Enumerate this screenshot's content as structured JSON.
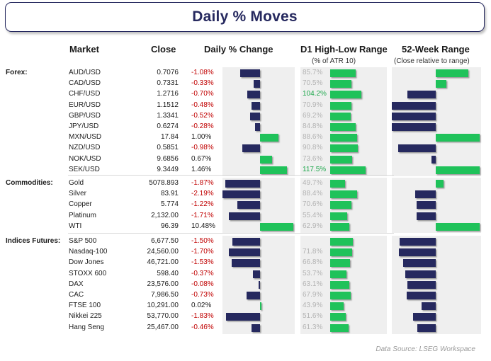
{
  "title": "Daily % Moves",
  "headers": {
    "market": "Market",
    "close": "Close",
    "change": "Daily % Change",
    "range": "D1 High-Low Range",
    "range_sub": "(% of ATR 10)",
    "week52": "52-Week Range",
    "week52_sub": "(Close relative to range)"
  },
  "source": "Data Source: LSEG Workspace",
  "colors": {
    "negative": "#26295f",
    "positive": "#1fc25a",
    "neg_text": "#c00000",
    "hi_text": "#1fa84d",
    "panel": "#efefef"
  },
  "chart_data": {
    "type": "table",
    "columns": [
      "Market",
      "Close",
      "Daily % Change",
      "D1 High-Low Range (% of ATR 10)",
      "52-Week Range (Close relative to range)"
    ],
    "groups": [
      {
        "name": "Forex:",
        "rows": [
          {
            "market": "AUD/USD",
            "close": "0.7076",
            "change": -1.08,
            "change_label": "-1.08%",
            "range": 85.7,
            "range_label": "85.7%",
            "week52": 0.87
          },
          {
            "market": "CAD/USD",
            "close": "0.7331",
            "change": -0.33,
            "change_label": "-0.33%",
            "range": 70.5,
            "range_label": "70.5%",
            "week52": 0.62
          },
          {
            "market": "CHF/USD",
            "close": "1.2716",
            "change": -0.7,
            "change_label": "-0.70%",
            "range": 104.2,
            "range_label": "104.2%",
            "week52": 0.18
          },
          {
            "market": "EUR/USD",
            "close": "1.1512",
            "change": -0.48,
            "change_label": "-0.48%",
            "range": 70.9,
            "range_label": "70.9%",
            "week52": 0.0
          },
          {
            "market": "GBP/USD",
            "close": "1.3341",
            "change": -0.52,
            "change_label": "-0.52%",
            "range": 69.2,
            "range_label": "69.2%",
            "week52": 0.0
          },
          {
            "market": "JPY/USD",
            "close": "0.6274",
            "change": -0.28,
            "change_label": "-0.28%",
            "range": 84.8,
            "range_label": "84.8%",
            "week52": 0.0
          },
          {
            "market": "MXN/USD",
            "close": "17.84",
            "change": 1.0,
            "change_label": "1.00%",
            "range": 88.6,
            "range_label": "88.6%",
            "week52": 1.0
          },
          {
            "market": "NZD/USD",
            "close": "0.5851",
            "change": -0.98,
            "change_label": "-0.98%",
            "range": 90.8,
            "range_label": "90.8%",
            "week52": 0.07
          },
          {
            "market": "NOK/USD",
            "close": "9.6856",
            "change": 0.67,
            "change_label": "0.67%",
            "range": 73.6,
            "range_label": "73.6%",
            "week52": 0.45
          },
          {
            "market": "SEK/USD",
            "close": "9.3449",
            "change": 1.46,
            "change_label": "1.46%",
            "range": 117.5,
            "range_label": "117.5%",
            "week52": 1.0
          }
        ]
      },
      {
        "name": "Commodities:",
        "rows": [
          {
            "market": "Gold",
            "close": "5078.893",
            "change": -1.87,
            "change_label": "-1.87%",
            "range": 49.7,
            "range_label": "49.7%",
            "week52": 0.59
          },
          {
            "market": "Silver",
            "close": "83.91",
            "change": -2.19,
            "change_label": "-2.19%",
            "range": 88.4,
            "range_label": "88.4%",
            "week52": 0.27
          },
          {
            "market": "Copper",
            "close": "5.774",
            "change": -1.22,
            "change_label": "-1.22%",
            "range": 70.6,
            "range_label": "70.6%",
            "week52": 0.28
          },
          {
            "market": "Platinum",
            "close": "2,132.00",
            "change": -1.71,
            "change_label": "-1.71%",
            "range": 55.4,
            "range_label": "55.4%",
            "week52": 0.28
          },
          {
            "market": "WTI",
            "close": "96.39",
            "change": 10.48,
            "change_label": "10.48%",
            "range": 62.9,
            "range_label": "62.9%",
            "week52": 1.0
          }
        ]
      },
      {
        "name": "Indices Futures:",
        "rows": [
          {
            "market": "S&P 500",
            "close": "6,677.50",
            "change": -1.5,
            "change_label": "-1.50%",
            "range": 76,
            "range_label": "",
            "week52": 0.09
          },
          {
            "market": "Nasdaq-100",
            "close": "24,560.00",
            "change": -1.7,
            "change_label": "-1.70%",
            "range": 71.8,
            "range_label": "71.8%",
            "week52": 0.08
          },
          {
            "market": "Dow Jones",
            "close": "46,721.00",
            "change": -1.53,
            "change_label": "-1.53%",
            "range": 66.8,
            "range_label": "66.8%",
            "week52": 0.13
          },
          {
            "market": "STOXX 600",
            "close": "598.40",
            "change": -0.37,
            "change_label": "-0.37%",
            "range": 53.7,
            "range_label": "53.7%",
            "week52": 0.15
          },
          {
            "market": "DAX",
            "close": "23,576.00",
            "change": -0.08,
            "change_label": "-0.08%",
            "range": 63.1,
            "range_label": "63.1%",
            "week52": 0.18
          },
          {
            "market": "CAC",
            "close": "7,986.50",
            "change": -0.73,
            "change_label": "-0.73%",
            "range": 67.9,
            "range_label": "67.9%",
            "week52": 0.17
          },
          {
            "market": "FTSE 100",
            "close": "10,291.00",
            "change": 0.02,
            "change_label": "0.02%",
            "range": 43.9,
            "range_label": "43.9%",
            "week52": 0.34
          },
          {
            "market": "Nikkei 225",
            "close": "53,770.00",
            "change": -1.83,
            "change_label": "-1.83%",
            "range": 51.6,
            "range_label": "51.6%",
            "week52": 0.24
          },
          {
            "market": "Hang Seng",
            "close": "25,467.00",
            "change": -0.46,
            "change_label": "-0.46%",
            "range": 61.3,
            "range_label": "61.3%",
            "week52": 0.29
          }
        ]
      }
    ]
  }
}
